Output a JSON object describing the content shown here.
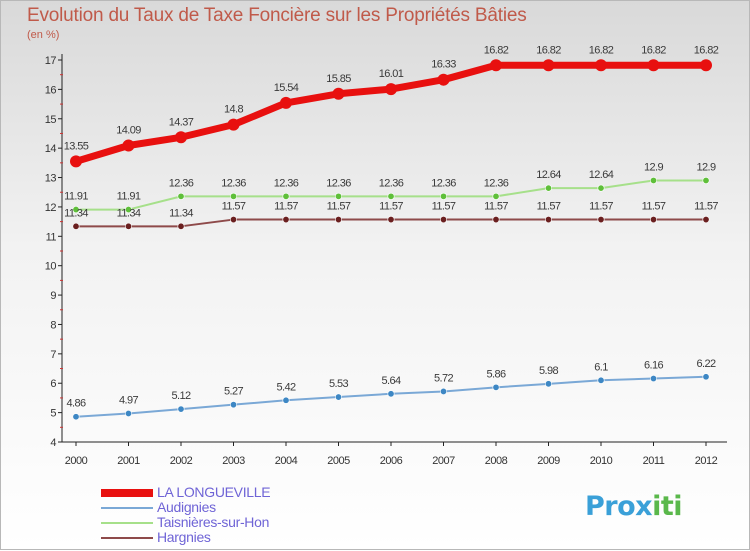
{
  "header": {
    "title": "Evolution du Taux de Taxe Foncière sur les Propriétés Bâties",
    "subtitle": "(en %)"
  },
  "logo": {
    "text": "Prox",
    "accent": "iti",
    "colors": [
      "#e8534a",
      "#f39c12",
      "#3aa0d8",
      "#5ab84b"
    ]
  },
  "chart_data": {
    "type": "line",
    "title": "Evolution du Taux de Taxe Foncière sur les Propriétés Bâties",
    "ylabel": "(en %)",
    "xlabel": "",
    "ylim": [
      4,
      17
    ],
    "yticks": [
      4,
      5,
      6,
      7,
      8,
      9,
      10,
      11,
      12,
      13,
      14,
      15,
      16,
      17
    ],
    "grid": false,
    "legend_position": "bottom-left",
    "x": [
      "2000",
      "2001",
      "2002",
      "2003",
      "2004",
      "2005",
      "2006",
      "2007",
      "2008",
      "2009",
      "2010",
      "2011",
      "2012"
    ],
    "series": [
      {
        "name": "LA LONGUEVILLE",
        "color": "#e8100f",
        "style": "thick",
        "values": [
          13.55,
          14.09,
          14.37,
          14.8,
          15.54,
          15.85,
          16.01,
          16.33,
          16.82,
          16.82,
          16.82,
          16.82,
          16.82
        ],
        "labels": [
          "13.55",
          "14.09",
          "14.37",
          "14.8",
          "15.54",
          "15.85",
          "16.01",
          "16.33",
          "16.82",
          "16.82",
          "16.82",
          "16.82",
          "16.82"
        ]
      },
      {
        "name": "Audignies",
        "color": "#7aa8d6",
        "marker": "#3d87c4",
        "values": [
          4.86,
          4.97,
          5.12,
          5.27,
          5.42,
          5.53,
          5.64,
          5.72,
          5.86,
          5.98,
          6.1,
          6.16,
          6.22
        ],
        "labels": [
          "4.86",
          "4.97",
          "5.12",
          "5.27",
          "5.42",
          "5.53",
          "5.64",
          "5.72",
          "5.86",
          "5.98",
          "6.1",
          "6.16",
          "6.22"
        ]
      },
      {
        "name": "Taisnières-sur-Hon",
        "color": "#a6e08a",
        "marker": "#5fbf3a",
        "values": [
          11.91,
          11.91,
          12.36,
          12.36,
          12.36,
          12.36,
          12.36,
          12.36,
          12.36,
          12.64,
          12.64,
          12.9,
          12.9
        ],
        "labels": [
          "11.91",
          "11.91",
          "12.36",
          "12.36",
          "12.36",
          "12.36",
          "12.36",
          "12.36",
          "12.36",
          "12.64",
          "12.64",
          "12.9",
          "12.9"
        ]
      },
      {
        "name": "Hargnies",
        "color": "#8e4a4a",
        "marker": "#6a1f1f",
        "values": [
          11.34,
          11.34,
          11.34,
          11.57,
          11.57,
          11.57,
          11.57,
          11.57,
          11.57,
          11.57,
          11.57,
          11.57,
          11.57
        ],
        "labels": [
          "11.34",
          "11.34",
          "11.34",
          "11.57",
          "11.57",
          "11.57",
          "11.57",
          "11.57",
          "11.57",
          "11.57",
          "11.57",
          "11.57",
          "11.57"
        ]
      }
    ]
  }
}
